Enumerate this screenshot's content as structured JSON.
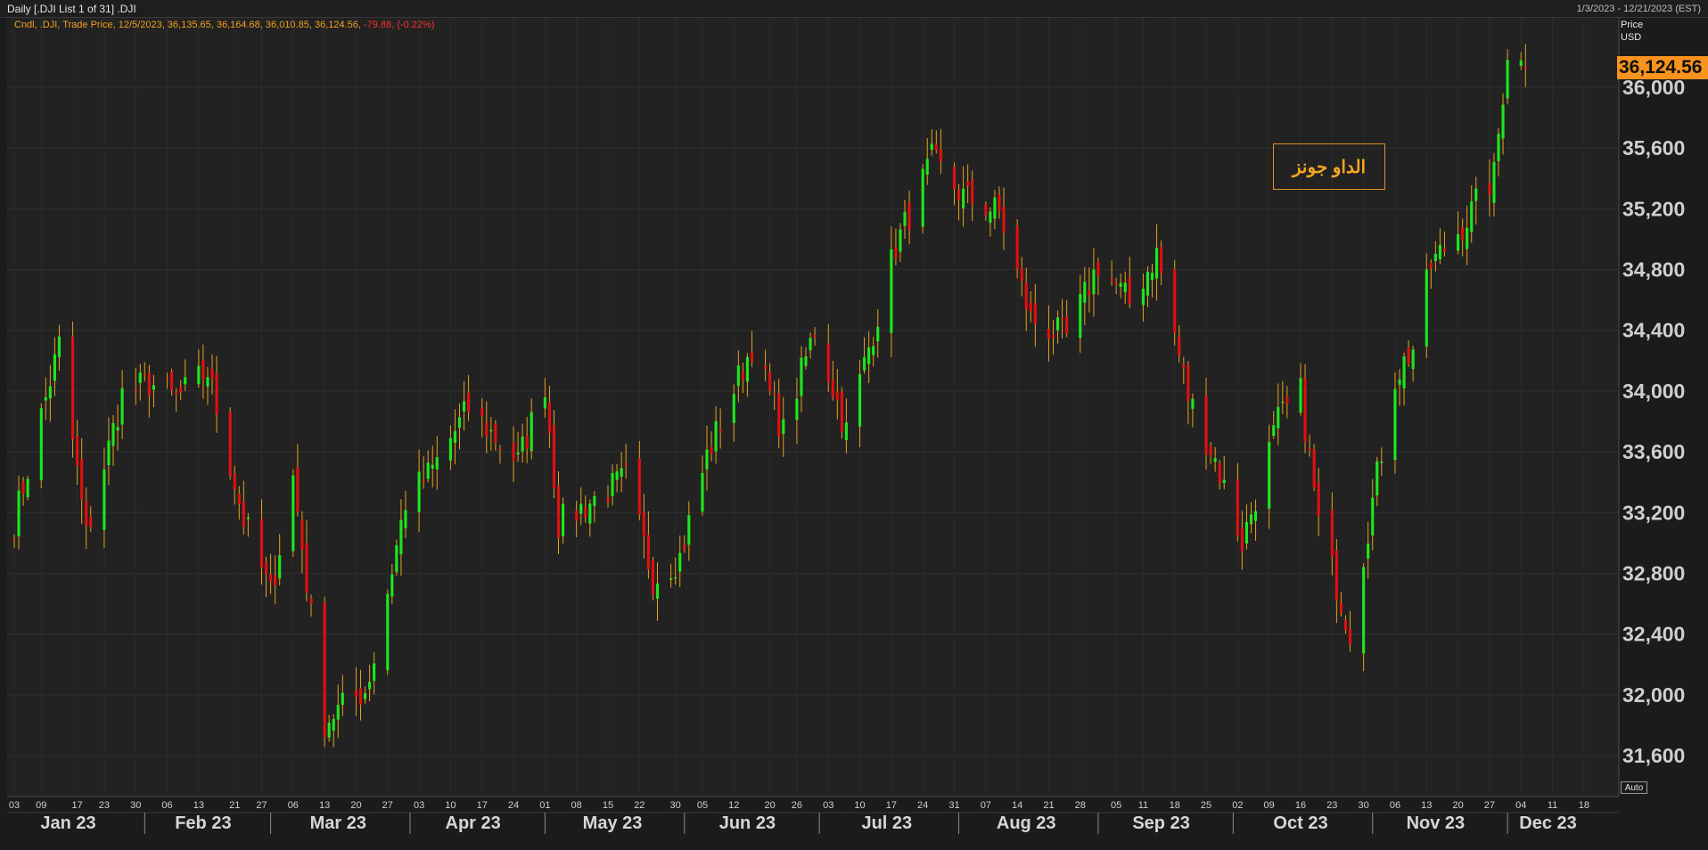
{
  "window": {
    "title": "Daily [.DJI List 1 of 31] .DJI",
    "date_range": "1/3/2023 - 12/21/2023 (EST)"
  },
  "legend": {
    "prefix": "Cndl, .DJI, Trade Price, 12/5/2023, 36,135.65, 36,164.68, 36,010.85, 36,124.56,",
    "change": "-79.88, (-0.22%)"
  },
  "price_axis": {
    "header": "Price",
    "currency": "USD",
    "last_value_label": "36,124.56",
    "auto_label": "Auto"
  },
  "annotation": {
    "text": "الداو جونز"
  },
  "colors": {
    "up": "#1ee61e",
    "down": "#e01010",
    "wick": "#e8a020",
    "background": "#222222",
    "grid": "#303030",
    "accent": "#f7931e"
  },
  "chart_data": {
    "type": "candlestick",
    "symbol": ".DJI",
    "ylim": [
      31300,
      36300
    ],
    "y_ticks": [
      31600,
      32000,
      32400,
      32800,
      33200,
      33600,
      34000,
      34400,
      34800,
      35200,
      35600,
      36000
    ],
    "y_tick_labels": [
      "31,600",
      "32,000",
      "32,400",
      "32,800",
      "33,200",
      "33,600",
      "34,000",
      "34,400",
      "34,800",
      "35,200",
      "35,600",
      "36,000"
    ],
    "x_start": "2023-01-03",
    "x_end": "2023-12-21",
    "months": [
      {
        "label": "Jan 23",
        "date": "2023-01-15"
      },
      {
        "label": "Feb 23",
        "date": "2023-02-14"
      },
      {
        "label": "Mar 23",
        "date": "2023-03-16"
      },
      {
        "label": "Apr 23",
        "date": "2023-04-15"
      },
      {
        "label": "May 23",
        "date": "2023-05-16"
      },
      {
        "label": "Jun 23",
        "date": "2023-06-15"
      },
      {
        "label": "Jul 23",
        "date": "2023-07-16"
      },
      {
        "label": "Aug 23",
        "date": "2023-08-16"
      },
      {
        "label": "Sep 23",
        "date": "2023-09-15"
      },
      {
        "label": "Oct 23",
        "date": "2023-10-16"
      },
      {
        "label": "Nov 23",
        "date": "2023-11-15"
      },
      {
        "label": "Dec 23",
        "date": "2023-12-10"
      }
    ],
    "month_starts": [
      "2023-02-01",
      "2023-03-01",
      "2023-04-01",
      "2023-05-01",
      "2023-06-01",
      "2023-07-01",
      "2023-08-01",
      "2023-09-01",
      "2023-10-01",
      "2023-11-01",
      "2023-12-01"
    ],
    "week_labels": [
      {
        "label": "03",
        "date": "2023-01-03"
      },
      {
        "label": "09",
        "date": "2023-01-09"
      },
      {
        "label": "17",
        "date": "2023-01-17"
      },
      {
        "label": "23",
        "date": "2023-01-23"
      },
      {
        "label": "30",
        "date": "2023-01-30"
      },
      {
        "label": "06",
        "date": "2023-02-06"
      },
      {
        "label": "13",
        "date": "2023-02-13"
      },
      {
        "label": "21",
        "date": "2023-02-21"
      },
      {
        "label": "27",
        "date": "2023-02-27"
      },
      {
        "label": "06",
        "date": "2023-03-06"
      },
      {
        "label": "13",
        "date": "2023-03-13"
      },
      {
        "label": "20",
        "date": "2023-03-20"
      },
      {
        "label": "27",
        "date": "2023-03-27"
      },
      {
        "label": "03",
        "date": "2023-04-03"
      },
      {
        "label": "10",
        "date": "2023-04-10"
      },
      {
        "label": "17",
        "date": "2023-04-17"
      },
      {
        "label": "24",
        "date": "2023-04-24"
      },
      {
        "label": "01",
        "date": "2023-05-01"
      },
      {
        "label": "08",
        "date": "2023-05-08"
      },
      {
        "label": "15",
        "date": "2023-05-15"
      },
      {
        "label": "22",
        "date": "2023-05-22"
      },
      {
        "label": "30",
        "date": "2023-05-30"
      },
      {
        "label": "05",
        "date": "2023-06-05"
      },
      {
        "label": "12",
        "date": "2023-06-12"
      },
      {
        "label": "20",
        "date": "2023-06-20"
      },
      {
        "label": "26",
        "date": "2023-06-26"
      },
      {
        "label": "03",
        "date": "2023-07-03"
      },
      {
        "label": "10",
        "date": "2023-07-10"
      },
      {
        "label": "17",
        "date": "2023-07-17"
      },
      {
        "label": "24",
        "date": "2023-07-24"
      },
      {
        "label": "31",
        "date": "2023-07-31"
      },
      {
        "label": "07",
        "date": "2023-08-07"
      },
      {
        "label": "14",
        "date": "2023-08-14"
      },
      {
        "label": "21",
        "date": "2023-08-21"
      },
      {
        "label": "28",
        "date": "2023-08-28"
      },
      {
        "label": "05",
        "date": "2023-09-05"
      },
      {
        "label": "11",
        "date": "2023-09-11"
      },
      {
        "label": "18",
        "date": "2023-09-18"
      },
      {
        "label": "25",
        "date": "2023-09-25"
      },
      {
        "label": "02",
        "date": "2023-10-02"
      },
      {
        "label": "09",
        "date": "2023-10-09"
      },
      {
        "label": "16",
        "date": "2023-10-16"
      },
      {
        "label": "23",
        "date": "2023-10-23"
      },
      {
        "label": "30",
        "date": "2023-10-30"
      },
      {
        "label": "06",
        "date": "2023-11-06"
      },
      {
        "label": "13",
        "date": "2023-11-13"
      },
      {
        "label": "20",
        "date": "2023-11-20"
      },
      {
        "label": "27",
        "date": "2023-11-27"
      },
      {
        "label": "04",
        "date": "2023-12-04"
      },
      {
        "label": "11",
        "date": "2023-12-11"
      },
      {
        "label": "18",
        "date": "2023-12-18"
      }
    ],
    "last_close": 36124.56,
    "grid": true,
    "legend_placement": "top-left",
    "key_points": [
      [
        "2023-01-03",
        33136
      ],
      [
        "2023-01-13",
        34303
      ],
      [
        "2023-01-19",
        33045
      ],
      [
        "2023-01-27",
        33978
      ],
      [
        "2023-02-02",
        34054
      ],
      [
        "2023-02-08",
        33949
      ],
      [
        "2023-02-15",
        34128
      ],
      [
        "2023-02-23",
        33154
      ],
      [
        "2023-03-01",
        32661
      ],
      [
        "2023-03-06",
        33431
      ],
      [
        "2023-03-13",
        31819
      ],
      [
        "2023-03-15",
        31875
      ],
      [
        "2023-03-22",
        32031
      ],
      [
        "2023-03-24",
        32237
      ],
      [
        "2023-03-31",
        33274
      ],
      [
        "2023-04-06",
        33485
      ],
      [
        "2023-04-14",
        33886
      ],
      [
        "2023-04-25",
        33531
      ],
      [
        "2023-05-01",
        34051
      ],
      [
        "2023-05-04",
        33128
      ],
      [
        "2023-05-19",
        33427
      ],
      [
        "2023-05-25",
        32764
      ],
      [
        "2023-05-31",
        32908
      ],
      [
        "2023-06-06",
        33573
      ],
      [
        "2023-06-16",
        34299
      ],
      [
        "2023-06-23",
        33727
      ],
      [
        "2023-06-30",
        34408
      ],
      [
        "2023-07-07",
        33734
      ],
      [
        "2023-07-18",
        34952
      ],
      [
        "2023-07-26",
        35520
      ],
      [
        "2023-08-02",
        35282
      ],
      [
        "2023-08-10",
        35176
      ],
      [
        "2023-08-17",
        34474
      ],
      [
        "2023-08-25",
        34346
      ],
      [
        "2023-09-01",
        34838
      ],
      [
        "2023-09-08",
        34577
      ],
      [
        "2023-09-14",
        34907
      ],
      [
        "2023-09-21",
        33963
      ],
      [
        "2023-09-27",
        33550
      ],
      [
        "2023-10-03",
        33002
      ],
      [
        "2023-10-11",
        33804
      ],
      [
        "2023-10-16",
        33985
      ],
      [
        "2023-10-20",
        33127
      ],
      [
        "2023-10-27",
        32418
      ],
      [
        "2023-11-01",
        33275
      ],
      [
        "2023-11-06",
        34095
      ],
      [
        "2023-11-10",
        34283
      ],
      [
        "2023-11-14",
        34828
      ],
      [
        "2023-11-21",
        35088
      ],
      [
        "2023-11-28",
        35416
      ],
      [
        "2023-12-01",
        36245
      ],
      [
        "2023-12-05",
        36124.56
      ]
    ]
  }
}
